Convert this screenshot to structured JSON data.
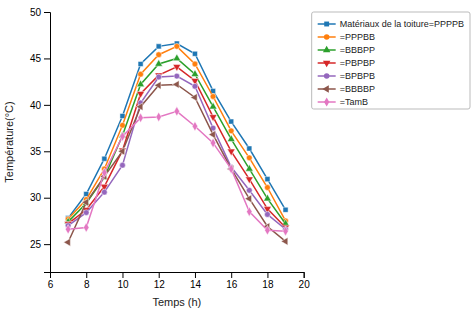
{
  "chart_data": {
    "type": "line",
    "xlabel": "Temps (h)",
    "ylabel": "Température(°C)",
    "x": [
      7,
      8,
      9,
      10,
      11,
      12,
      13,
      14,
      15,
      16,
      17,
      18,
      19
    ],
    "xlim": [
      6,
      20
    ],
    "ylim": [
      22,
      50
    ],
    "xticks": [
      6,
      8,
      10,
      12,
      14,
      16,
      18,
      20
    ],
    "yticks": [
      25,
      30,
      35,
      40,
      45,
      50
    ],
    "legend": "upper right",
    "series": [
      {
        "name": "Matériaux de la toiture=PPPPB",
        "marker": "square",
        "values": [
          27.8,
          30.4,
          34.2,
          38.8,
          44.4,
          46.3,
          46.6,
          45.5,
          41.5,
          38.2,
          35.3,
          32.0,
          28.7
        ]
      },
      {
        "name": "=PPPBB",
        "marker": "circle",
        "values": [
          27.7,
          29.8,
          33.1,
          37.8,
          43.3,
          45.4,
          46.3,
          44.4,
          40.9,
          37.2,
          34.3,
          31.1,
          27.5
        ]
      },
      {
        "name": "=BBBPP",
        "marker": "triangle-up",
        "values": [
          27.4,
          29.4,
          32.2,
          36.7,
          42.2,
          44.4,
          45.0,
          43.3,
          39.8,
          36.3,
          33.1,
          29.9,
          27.2
        ]
      },
      {
        "name": "=PBPBP",
        "marker": "triangle-down",
        "values": [
          27.2,
          28.7,
          31.2,
          35.1,
          41.2,
          43.2,
          44.1,
          42.6,
          38.7,
          35.0,
          32.0,
          28.8,
          26.8
        ]
      },
      {
        "name": "=BPBPB",
        "marker": "circle",
        "values": [
          27.0,
          28.4,
          30.6,
          33.5,
          40.2,
          43.0,
          43.1,
          42.0,
          37.5,
          33.3,
          30.8,
          28.2,
          26.6
        ]
      },
      {
        "name": "=BBBBP",
        "marker": "triangle-left",
        "values": [
          25.2,
          29.5,
          32.3,
          35.0,
          39.8,
          42.1,
          42.2,
          40.8,
          36.8,
          33.1,
          29.9,
          26.9,
          25.3
        ]
      },
      {
        "name": "=TamB",
        "marker": "diamond",
        "values": [
          26.6,
          26.8,
          32.7,
          36.6,
          38.6,
          38.7,
          39.3,
          37.7,
          35.9,
          33.1,
          28.5,
          26.5,
          26.4
        ]
      }
    ]
  }
}
